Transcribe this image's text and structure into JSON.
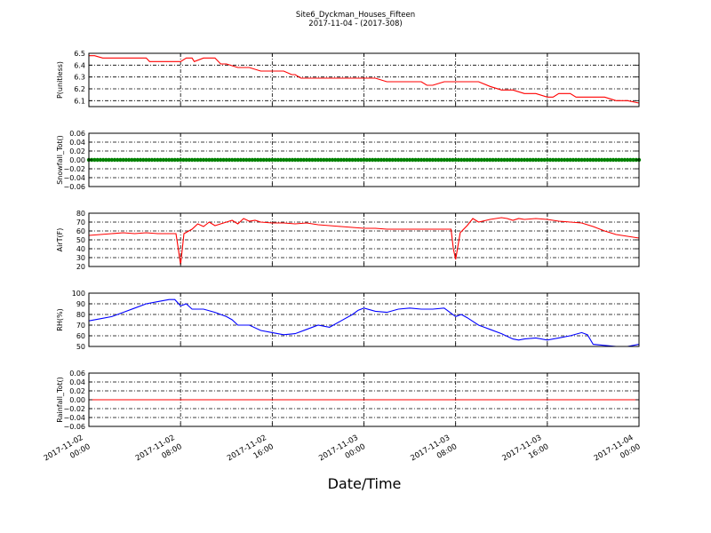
{
  "title": "Site6_Dyckman_Houses_Fifteen",
  "subtitle": "2017-11-04 - (2017-308)",
  "xlabel": "Date/Time",
  "x_ticks": [
    {
      "line1": "2017-11-02",
      "line2": "00:00",
      "hours": 0
    },
    {
      "line1": "2017-11-02",
      "line2": "08:00",
      "hours": 8
    },
    {
      "line1": "2017-11-02",
      "line2": "16:00",
      "hours": 16
    },
    {
      "line1": "2017-11-03",
      "line2": "00:00",
      "hours": 24
    },
    {
      "line1": "2017-11-03",
      "line2": "08:00",
      "hours": 32
    },
    {
      "line1": "2017-11-03",
      "line2": "16:00",
      "hours": 40
    },
    {
      "line1": "2017-11-04",
      "line2": "00:00",
      "hours": 48
    }
  ],
  "chart_data": [
    {
      "type": "line",
      "ylabel": "P(unitless)",
      "ylim": [
        6.05,
        6.5
      ],
      "yticks": [
        "6.1",
        "6.2",
        "6.3",
        "6.4",
        "6.5"
      ],
      "ytick_values": [
        6.1,
        6.2,
        6.3,
        6.4,
        6.5
      ],
      "color": "#ff0000",
      "grid": true,
      "series": [
        {
          "x": [
            0,
            0.5,
            1.2,
            2,
            3,
            4,
            5,
            5.3,
            6,
            7,
            8,
            8.5,
            9,
            9.2,
            10,
            11,
            11.5,
            12,
            13,
            14,
            15,
            15.3,
            16,
            16.2,
            17,
            17.7,
            18,
            18.5,
            19,
            20,
            21,
            22,
            23,
            24,
            25,
            26,
            27,
            28,
            29,
            29.5,
            30,
            31,
            32,
            33,
            34,
            35,
            36,
            37,
            38,
            38.5,
            39,
            40,
            40.5,
            41,
            42,
            42.5,
            43,
            44,
            45,
            46,
            47,
            48
          ],
          "y": [
            6.48,
            6.48,
            6.46,
            6.46,
            6.46,
            6.46,
            6.46,
            6.43,
            6.43,
            6.43,
            6.43,
            6.46,
            6.46,
            6.43,
            6.46,
            6.46,
            6.41,
            6.41,
            6.38,
            6.38,
            6.35,
            6.35,
            6.35,
            6.35,
            6.35,
            6.32,
            6.32,
            6.29,
            6.29,
            6.29,
            6.29,
            6.29,
            6.29,
            6.29,
            6.29,
            6.26,
            6.26,
            6.26,
            6.26,
            6.23,
            6.23,
            6.26,
            6.26,
            6.26,
            6.26,
            6.22,
            6.19,
            6.19,
            6.16,
            6.16,
            6.16,
            6.13,
            6.13,
            6.16,
            6.16,
            6.13,
            6.13,
            6.13,
            6.13,
            6.1,
            6.1,
            6.08
          ]
        }
      ]
    },
    {
      "type": "scatter",
      "ylabel": "Snowfall_Tot()",
      "ylim": [
        -0.06,
        0.06
      ],
      "yticks": [
        "−0.06",
        "−0.04",
        "−0.02",
        "0.00",
        "0.02",
        "0.04",
        "0.06"
      ],
      "ytick_values": [
        -0.06,
        -0.04,
        -0.02,
        0.0,
        0.02,
        0.04,
        0.06
      ],
      "color": "#008000",
      "grid": true,
      "constant_value": 0.0
    },
    {
      "type": "line",
      "ylabel": "AirT(F)",
      "ylim": [
        20,
        80
      ],
      "yticks": [
        "20",
        "30",
        "40",
        "50",
        "60",
        "70",
        "80"
      ],
      "ytick_values": [
        20,
        30,
        40,
        50,
        60,
        70,
        80
      ],
      "color": "#ff0000",
      "grid": true,
      "series": [
        {
          "x": [
            0,
            1,
            2,
            3,
            4,
            5,
            6,
            7,
            7.6,
            7.8,
            8.0,
            8.3,
            9,
            9.5,
            10,
            10.5,
            11,
            11.5,
            12,
            12.5,
            13,
            13.5,
            14,
            14.5,
            15,
            16,
            17,
            18,
            19,
            20,
            21,
            22,
            23,
            24,
            25,
            26,
            27,
            28,
            29,
            30,
            31,
            31.6,
            31.8,
            32.0,
            32.4,
            33,
            33.5,
            34,
            35,
            36,
            36.5,
            37,
            37.5,
            38,
            39,
            40,
            41,
            42,
            43,
            44,
            45,
            46,
            47,
            48
          ],
          "y": [
            55,
            56,
            57,
            58,
            57,
            58,
            57,
            57,
            57,
            40,
            22,
            57,
            62,
            68,
            65,
            70,
            66,
            68,
            70,
            72,
            68,
            74,
            71,
            72,
            70,
            69,
            69,
            68,
            69,
            67,
            66,
            65,
            64,
            63,
            63,
            62,
            62,
            62,
            62,
            62,
            62,
            62,
            40,
            28,
            58,
            66,
            74,
            70,
            73,
            75,
            74,
            72,
            74,
            73,
            74,
            73,
            71,
            70,
            69,
            65,
            60,
            56,
            54,
            52
          ]
        }
      ]
    },
    {
      "type": "line",
      "ylabel": "RH(%)",
      "ylim": [
        50,
        100
      ],
      "yticks": [
        "50",
        "60",
        "70",
        "80",
        "90",
        "100"
      ],
      "ytick_values": [
        50,
        60,
        70,
        80,
        90,
        100
      ],
      "color": "#0000ff",
      "grid": true,
      "series": [
        {
          "x": [
            0,
            1,
            2,
            3,
            4,
            5,
            6,
            7,
            7.5,
            8,
            8.5,
            9,
            10,
            11,
            12,
            12.5,
            13,
            14,
            15,
            16,
            17,
            18,
            19,
            20,
            21,
            22,
            23,
            23.5,
            24,
            25,
            26,
            27,
            28,
            29,
            30,
            31,
            32,
            32.5,
            33,
            34,
            34.5,
            35,
            36,
            37,
            37.5,
            38,
            39,
            40,
            41,
            42,
            43,
            43.5,
            44,
            45,
            46,
            47,
            48
          ],
          "y": [
            74,
            76,
            78,
            82,
            86,
            90,
            92,
            94,
            94,
            88,
            90,
            85,
            85,
            82,
            78,
            75,
            70,
            70,
            65,
            63,
            61,
            62,
            66,
            70,
            68,
            74,
            80,
            84,
            86,
            83,
            82,
            85,
            86,
            85,
            85,
            86,
            78,
            80,
            77,
            70,
            68,
            66,
            62,
            57,
            56,
            57,
            58,
            56,
            58,
            60,
            63,
            61,
            52,
            51,
            50,
            50,
            52
          ]
        }
      ]
    },
    {
      "type": "line",
      "ylabel": "Rainfall_Tot()",
      "ylim": [
        -0.06,
        0.06
      ],
      "yticks": [
        "−0.06",
        "−0.04",
        "−0.02",
        "0.00",
        "0.02",
        "0.04",
        "0.06"
      ],
      "ytick_values": [
        -0.06,
        -0.04,
        -0.02,
        0.0,
        0.02,
        0.04,
        0.06
      ],
      "color": "#ff0000",
      "grid": true,
      "series": [
        {
          "x": [
            0,
            48
          ],
          "y": [
            0.0,
            0.0
          ]
        }
      ]
    }
  ]
}
